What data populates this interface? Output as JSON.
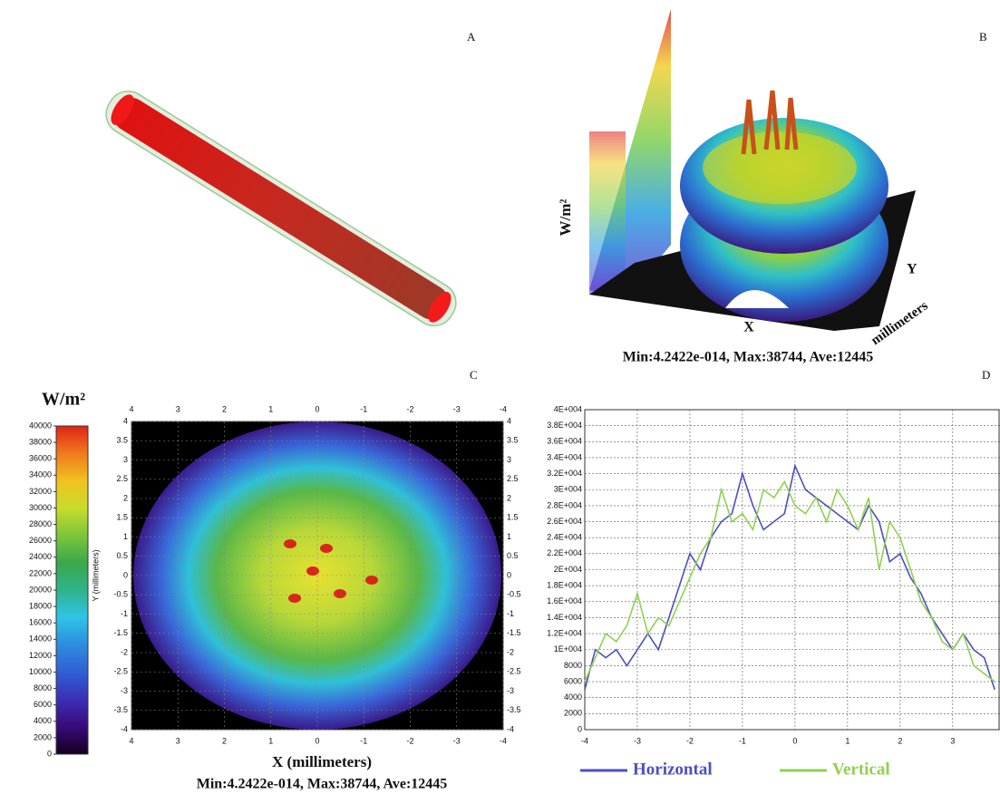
{
  "panels": {
    "a": {
      "label": "A"
    },
    "b": {
      "label": "B",
      "z_label": "W/m²",
      "x_label": "X",
      "y_label": "Y",
      "y_unit": "millimeters",
      "stats": "Min:4.2422e-014, Max:38744, Ave:12445"
    },
    "c": {
      "label": "C",
      "stats": "Min:4.2422e-014, Max:38744, Ave:12445"
    },
    "d": {
      "label": "D"
    }
  },
  "chart_data": [
    {
      "type": "heatmap",
      "x_label": "X (millimeters)",
      "y_label": "Y (millimeters)",
      "xlim": [
        4,
        -4
      ],
      "xticks": [
        4,
        3,
        2,
        1,
        0,
        -1,
        -2,
        -3,
        -4
      ],
      "ylim": [
        -4,
        4
      ],
      "yticks": [
        -4,
        -3.5,
        -3,
        -2.5,
        -2,
        -1.5,
        -1,
        -0.5,
        0,
        0.5,
        1,
        1.5,
        2,
        2.5,
        3,
        3.5,
        4
      ],
      "grid": true,
      "colorbar": {
        "title": "W/m²",
        "lim": [
          0,
          40000
        ],
        "ticks": [
          0,
          2000,
          4000,
          6000,
          8000,
          10000,
          12000,
          14000,
          16000,
          18000,
          20000,
          22000,
          24000,
          26000,
          28000,
          30000,
          32000,
          34000,
          36000,
          38000,
          40000
        ],
        "colors": [
          "#14001e",
          "#3a0a7a",
          "#3b2fb5",
          "#2f5fd6",
          "#2d8de0",
          "#2ec4e6",
          "#2fb389",
          "#3aa84a",
          "#7cc63a",
          "#c8dc2c",
          "#f0c21e",
          "#ef7a1c",
          "#e02418"
        ]
      }
    },
    {
      "type": "line",
      "x": [
        -4,
        -3.8,
        -3.6,
        -3.4,
        -3.2,
        -3,
        -2.8,
        -2.6,
        -2.4,
        -2.2,
        -2,
        -1.8,
        -1.6,
        -1.4,
        -1.2,
        -1,
        -0.8,
        -0.6,
        -0.4,
        -0.2,
        0,
        0.2,
        0.4,
        0.6,
        0.8,
        1,
        1.2,
        1.4,
        1.6,
        1.8,
        2,
        2.2,
        2.4,
        2.6,
        2.8,
        3,
        3.2,
        3.4,
        3.6,
        3.8
      ],
      "series": [
        {
          "name": "Horizontal",
          "color": "#4b4fc0",
          "values": [
            5000,
            10000,
            9000,
            10000,
            8000,
            10000,
            12000,
            10000,
            14000,
            18000,
            22000,
            20000,
            24000,
            26000,
            27000,
            32000,
            28000,
            25000,
            26000,
            27000,
            33000,
            30000,
            29000,
            28000,
            27000,
            26000,
            25000,
            28000,
            26000,
            21000,
            22000,
            19000,
            17000,
            14000,
            12000,
            10000,
            12000,
            10000,
            9000,
            5000
          ]
        },
        {
          "name": "Vertical",
          "color": "#8fd14f",
          "values": [
            6000,
            9000,
            12000,
            11000,
            13000,
            17000,
            12000,
            14000,
            13000,
            16000,
            19000,
            22000,
            24000,
            30000,
            26000,
            27000,
            25000,
            30000,
            29000,
            31000,
            28000,
            27000,
            29000,
            26000,
            30000,
            28000,
            25000,
            29000,
            20000,
            26000,
            24000,
            20000,
            16000,
            14000,
            11000,
            10000,
            12000,
            8000,
            7000,
            6000
          ]
        }
      ],
      "xlim": [
        -4,
        3.9
      ],
      "xticks": [
        -4,
        -3,
        -2,
        -1,
        0,
        1,
        2,
        3
      ],
      "ylim": [
        0,
        40000
      ],
      "yticks": [
        0,
        2000,
        4000,
        6000,
        8000,
        {
          "value": 10000,
          "label": "1E+004"
        },
        {
          "value": 12000,
          "label": "1.2E+004"
        },
        {
          "value": 14000,
          "label": "1.4E+004"
        },
        {
          "value": 16000,
          "label": "1.6E+004"
        },
        {
          "value": 18000,
          "label": "1.8E+004"
        },
        {
          "value": 20000,
          "label": "2E+004"
        },
        {
          "value": 22000,
          "label": "2.2E+004"
        },
        {
          "value": 24000,
          "label": "2.4E+004"
        },
        {
          "value": 26000,
          "label": "2.6E+004"
        },
        {
          "value": 28000,
          "label": "2.8E+004"
        },
        {
          "value": 30000,
          "label": "3E+004"
        },
        {
          "value": 32000,
          "label": "3.2E+004"
        },
        {
          "value": 34000,
          "label": "3.4E+004"
        },
        {
          "value": 36000,
          "label": "3.6E+004"
        },
        {
          "value": 38000,
          "label": "3.8E+004"
        },
        {
          "value": 40000,
          "label": "4E+004"
        }
      ],
      "grid": true,
      "legend": "bottom"
    }
  ]
}
